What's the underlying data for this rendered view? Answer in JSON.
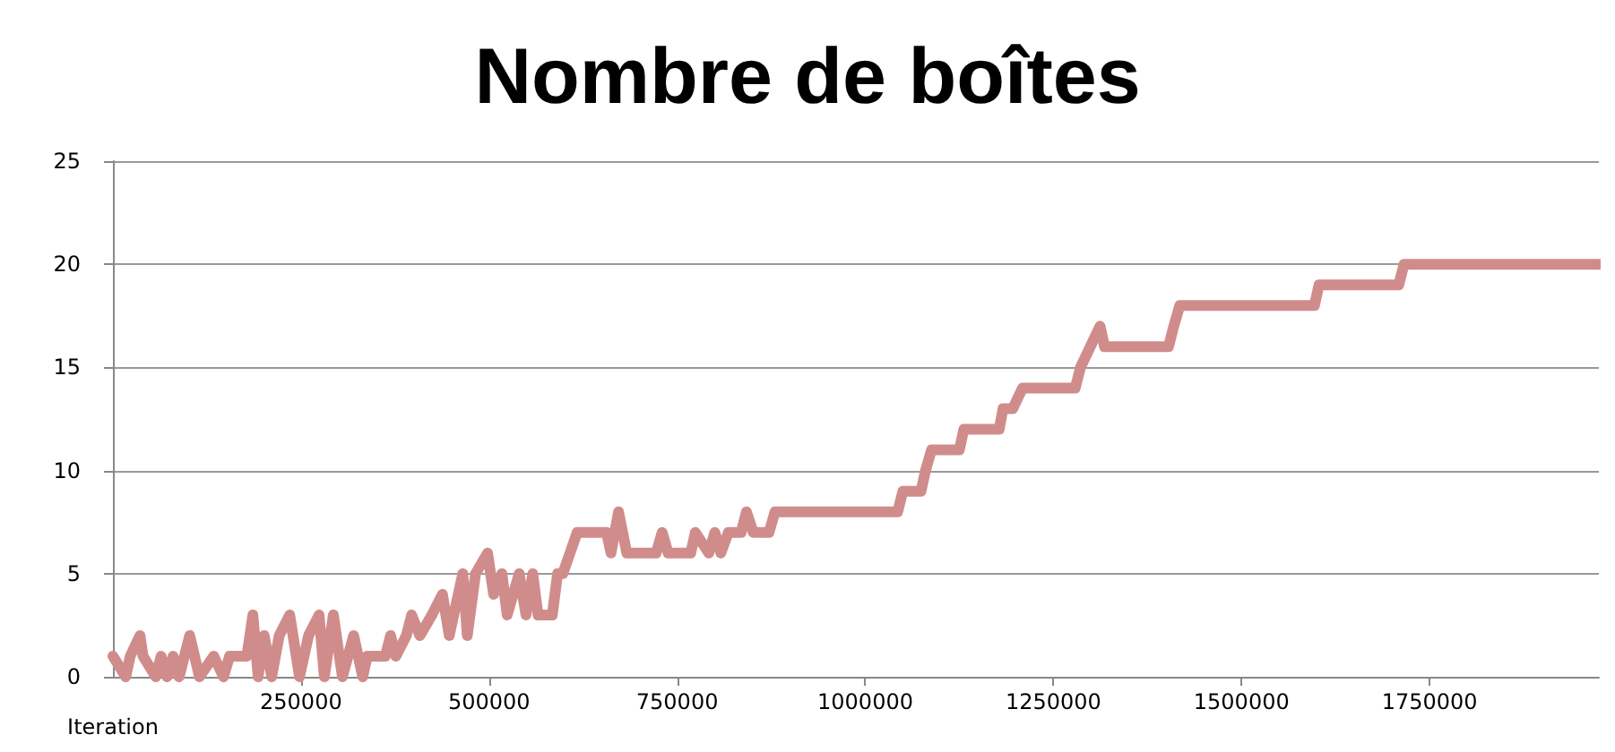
{
  "chart_data": {
    "type": "line",
    "title": "Nombre de boîtes",
    "x": [
      0,
      17000,
      23000,
      36000,
      40000,
      57000,
      64000,
      72000,
      80000,
      88000,
      95000,
      102000,
      115000,
      134000,
      147000,
      155000,
      178000,
      186000,
      193000,
      201000,
      211000,
      221000,
      235000,
      248000,
      260000,
      274000,
      281000,
      293000,
      305000,
      320000,
      332000,
      338000,
      362000,
      369000,
      376000,
      390000,
      397000,
      408000,
      424000,
      438000,
      447000,
      465000,
      471000,
      482000,
      498000,
      506000,
      517000,
      524000,
      540000,
      549000,
      558000,
      565000,
      584000,
      591000,
      598000,
      617000,
      656000,
      662000,
      672000,
      683000,
      722000,
      730000,
      738000,
      768000,
      774000,
      792000,
      800000,
      808000,
      818000,
      835000,
      842000,
      851000,
      872000,
      880000,
      1043000,
      1050000,
      1074000,
      1080000,
      1088000,
      1125000,
      1131000,
      1178000,
      1183000,
      1196000,
      1209000,
      1279000,
      1286000,
      1299000,
      1312000,
      1318000,
      1403000,
      1410000,
      1418000,
      1597000,
      1603000,
      1709000,
      1716000,
      1975000
    ],
    "series": [
      {
        "color": "#d08c8b",
        "values": [
          1,
          0,
          1,
          2,
          1,
          0,
          1,
          0,
          1,
          0,
          1,
          2,
          0,
          1,
          0,
          1,
          1,
          3,
          0,
          2,
          0,
          2,
          3,
          0,
          2,
          3,
          0,
          3,
          0,
          2,
          0,
          1,
          1,
          2,
          1,
          2,
          3,
          2,
          3,
          4,
          2,
          5,
          2,
          5,
          6,
          4,
          5,
          3,
          5,
          3,
          5,
          3,
          3,
          5,
          5,
          7,
          7,
          6,
          8,
          6,
          6,
          7,
          6,
          6,
          7,
          6,
          7,
          6,
          7,
          7,
          8,
          7,
          7,
          8,
          8,
          9,
          9,
          10,
          11,
          11,
          12,
          12,
          13,
          13,
          14,
          14,
          15,
          16,
          17,
          16,
          16,
          17,
          18,
          18,
          19,
          19,
          20,
          20
        ]
      }
    ],
    "xlim": [
      0,
      1975000
    ],
    "xlabel": "Iteration",
    "xticks": [
      250000,
      500000,
      750000,
      1000000,
      1250000,
      1500000,
      1750000
    ],
    "ylim": [
      0,
      25
    ],
    "yticks": [
      0,
      5,
      10,
      15,
      20,
      25
    ],
    "grid": "y",
    "marker": "none",
    "line_style": "solid"
  }
}
